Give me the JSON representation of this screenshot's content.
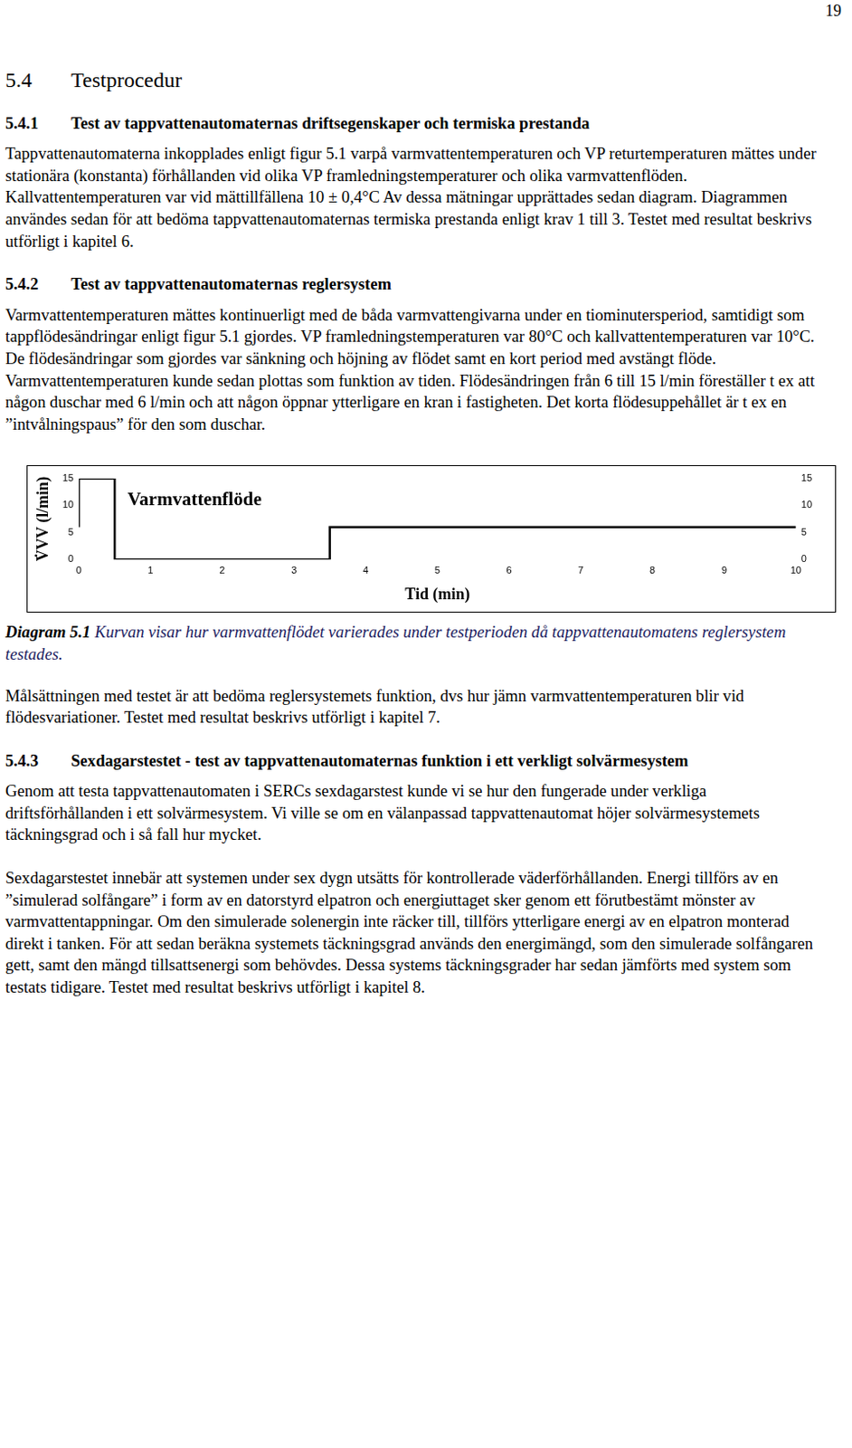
{
  "page_number": "19",
  "heading": {
    "number": "5.4",
    "title": "Testprocedur"
  },
  "sections": [
    {
      "number": "5.4.1",
      "title": "Test av tappvattenautomaternas driftsegenskaper och termiska prestanda",
      "paragraphs": [
        "Tappvattenautomaterna inkopplades enligt figur 5.1 varpå varmvattentemperaturen och VP returtemperaturen mättes under stationära (konstanta) förhållanden vid olika VP framledningstemperaturer och olika varmvattenflöden. Kallvattentemperaturen var vid mättillfällena 10 ± 0,4°C Av dessa mätningar upprättades sedan diagram. Diagrammen användes sedan för att bedöma tappvattenautomaternas termiska prestanda enligt krav 1 till 3. Testet med resultat beskrivs utförligt i kapitel 6."
      ]
    },
    {
      "number": "5.4.2",
      "title": "Test av tappvattenautomaternas reglersystem",
      "paragraphs": [
        "Varmvattentemperaturen mättes kontinuerligt med de båda varmvattengivarna under en tiominutersperiod, samtidigt som tappflödesändringar enligt figur 5.1 gjordes. VP framledningstemperaturen var 80°C och kallvattentemperaturen var 10°C. De flödesändringar som gjordes var sänkning och höjning av flödet samt en kort period med avstängt flöde. Varmvattentemperaturen kunde sedan plottas som funktion av tiden. Flödesändringen från 6 till 15 l/min föreställer t ex att någon duschar med 6 l/min och att någon öppnar ytterligare en kran i fastigheten. Det korta flödesuppehållet är t ex en ”intvålningspaus” för den som duschar."
      ],
      "figure_caption": {
        "label": "Diagram 5.1",
        "text": "Kurvan visar hur varmvattenflödet varierades under testperioden då tappvattenautomatens reglersystem testades."
      },
      "paragraphs_after_figure": [
        "Målsättningen med testet är att  bedöma reglersystemets funktion, dvs hur jämn varmvattentemperaturen blir vid flödesvariationer. Testet med resultat beskrivs utförligt i kapitel 7."
      ]
    },
    {
      "number": "5.4.3",
      "title": "Sexdagarstestet - test av tappvattenautomaternas funktion i ett verkligt solvärmesystem",
      "paragraphs": [
        "Genom att testa tappvattenautomaten i SERCs sexdagarstest kunde vi se hur den fungerade under verkliga driftsförhållanden i ett solvärmesystem. Vi ville se om en välanpassad tappvattenautomat höjer solvärmesystemets täckningsgrad och i så fall hur mycket.",
        "Sexdagarstestet innebär att systemen under sex dygn utsätts för kontrollerade väderförhållanden. Energi tillförs av en ”simulerad solfångare” i form av en datorstyrd elpatron och energiuttaget sker genom ett förutbestämt mönster av varmvattentappningar. Om den simulerade solenergin inte räcker till, tillförs ytterligare energi av en elpatron monterad direkt i tanken. För att sedan beräkna systemets täckningsgrad används den energimängd, som den simulerade solfångaren gett, samt den mängd tillsattsenergi som behövdes. Dessa systems täckningsgrader har sedan jämförts med system som testats tidigare. Testet med resultat beskrivs utförligt i kapitel 8."
      ]
    }
  ],
  "chart_data": {
    "type": "line",
    "line_style": "steps",
    "annotation": "Varmvattenflöde",
    "x_label": "Tid (min)",
    "y_label": "V̇VV (l/min)",
    "x": [
      0,
      0.5,
      3.5,
      7.5,
      10
    ],
    "values": [
      6,
      15,
      0,
      6,
      6
    ],
    "color": "#000000",
    "xlim": [
      0,
      10
    ],
    "xticks": [
      0,
      1,
      2,
      3,
      4,
      5,
      6,
      7,
      8,
      9,
      10
    ],
    "ylim": [
      0,
      15
    ],
    "yticks": [
      0,
      5,
      10,
      15
    ],
    "y2lim": [
      0,
      15
    ],
    "y2ticks": [
      0,
      5,
      10,
      15
    ],
    "grid": false
  }
}
